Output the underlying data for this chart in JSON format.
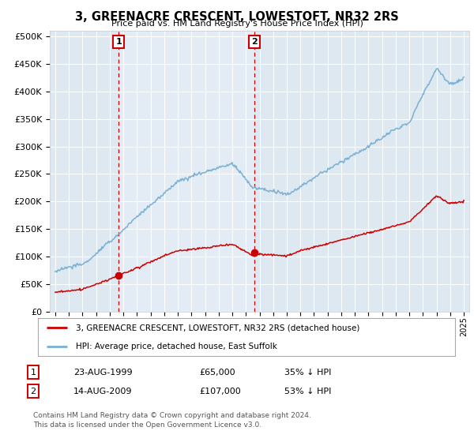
{
  "title": "3, GREENACRE CRESCENT, LOWESTOFT, NR32 2RS",
  "subtitle": "Price paid vs. HM Land Registry's House Price Index (HPI)",
  "background_color": "#ffffff",
  "plot_bg_color": "#dde8f0",
  "purchase1_x": 1999.65,
  "purchase1_price": 65000,
  "purchase2_x": 2009.62,
  "purchase2_price": 107000,
  "ylim": [
    0,
    510000
  ],
  "yticks": [
    0,
    50000,
    100000,
    150000,
    200000,
    250000,
    300000,
    350000,
    400000,
    450000,
    500000
  ],
  "xlim_start": 1994.6,
  "xlim_end": 2025.4,
  "legend_label_red": "3, GREENACRE CRESCENT, LOWESTOFT, NR32 2RS (detached house)",
  "legend_label_blue": "HPI: Average price, detached house, East Suffolk",
  "table_row1_num": "1",
  "table_row1_date": "23-AUG-1999",
  "table_row1_price": "£65,000",
  "table_row1_hpi": "35% ↓ HPI",
  "table_row2_num": "2",
  "table_row2_date": "14-AUG-2009",
  "table_row2_price": "£107,000",
  "table_row2_hpi": "53% ↓ HPI",
  "footer": "Contains HM Land Registry data © Crown copyright and database right 2024.\nThis data is licensed under the Open Government Licence v3.0.",
  "red_color": "#cc0000",
  "blue_color": "#7ab0d4",
  "dashed_color": "#cc0000",
  "highlight_color": "#e8f0f8"
}
